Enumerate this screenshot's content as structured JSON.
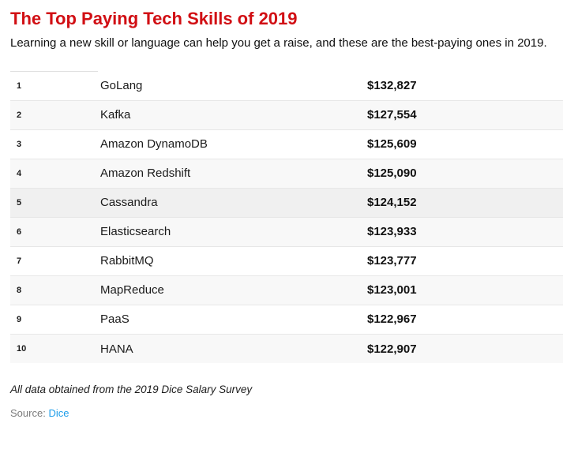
{
  "header": {
    "title": "The Top Paying Tech Skills of 2019",
    "subtitle": "Learning a new skill or language can help you get a raise, and these are the best-paying ones in 2019."
  },
  "chart_data": {
    "type": "table",
    "title": "The Top Paying Tech Skills of 2019",
    "subtitle": "Learning a new skill or language can help you get a raise, and these are the best-paying ones in 2019.",
    "highlighted_rank": 5,
    "rows": [
      {
        "rank": 1,
        "skill": "GoLang",
        "salary_usd": 132827,
        "salary_label": "$132,827"
      },
      {
        "rank": 2,
        "skill": "Kafka",
        "salary_usd": 127554,
        "salary_label": "$127,554"
      },
      {
        "rank": 3,
        "skill": "Amazon DynamoDB",
        "salary_usd": 125609,
        "salary_label": "$125,609"
      },
      {
        "rank": 4,
        "skill": "Amazon Redshift",
        "salary_usd": 125090,
        "salary_label": "$125,090"
      },
      {
        "rank": 5,
        "skill": "Cassandra",
        "salary_usd": 124152,
        "salary_label": "$124,152"
      },
      {
        "rank": 6,
        "skill": "Elasticsearch",
        "salary_usd": 123933,
        "salary_label": "$123,933"
      },
      {
        "rank": 7,
        "skill": "RabbitMQ",
        "salary_usd": 123777,
        "salary_label": "$123,777"
      },
      {
        "rank": 8,
        "skill": "MapReduce",
        "salary_usd": 123001,
        "salary_label": "$123,001"
      },
      {
        "rank": 9,
        "skill": "PaaS",
        "salary_usd": 122967,
        "salary_label": "$122,967"
      },
      {
        "rank": 10,
        "skill": "HANA",
        "salary_usd": 122907,
        "salary_label": "$122,907"
      }
    ],
    "note": "All data obtained from the 2019 Dice Salary Survey",
    "source_label": "Source:",
    "source_link_text": "Dice"
  },
  "colors": {
    "title_red": "#d10f14",
    "row_stripe": "#f8f8f8",
    "row_highlight": "#f0f0f0",
    "row_border": "#e7e7e7",
    "link_blue": "#1d9de9",
    "source_gray": "#7b7b7b"
  }
}
